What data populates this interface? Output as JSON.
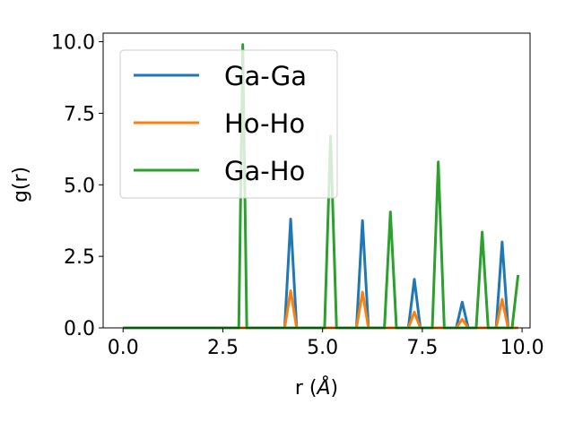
{
  "chart_data": {
    "type": "line",
    "title": "",
    "xlabel": "r (",
    "xlabel_symbol": "Å",
    "xlabel_close": ")",
    "ylabel": "g(r)",
    "xlim": [
      -0.5,
      10.2
    ],
    "ylim": [
      0.0,
      10.3
    ],
    "x_ticks": [
      0.0,
      2.5,
      5.0,
      7.5,
      10.0
    ],
    "x_tick_labels": [
      "0.0",
      "2.5",
      "5.0",
      "7.5",
      "10.0"
    ],
    "y_ticks": [
      0.0,
      2.5,
      5.0,
      7.5,
      10.0
    ],
    "y_tick_labels": [
      "0.0",
      "2.5",
      "5.0",
      "7.5",
      "10.0"
    ],
    "grid": false,
    "legend_position": "top-left",
    "series": [
      {
        "name": "Ga-Ga",
        "color": "#1f77b4",
        "x": [
          0.0,
          4.05,
          4.2,
          4.35,
          5.85,
          6.0,
          6.15,
          7.15,
          7.3,
          7.45,
          8.35,
          8.5,
          8.65,
          9.35,
          9.5,
          9.65,
          9.9
        ],
        "y": [
          0,
          0,
          3.8,
          0,
          0,
          3.75,
          0,
          0,
          1.7,
          0,
          0,
          0.9,
          0,
          0,
          3.0,
          0,
          0
        ]
      },
      {
        "name": "Ho-Ho",
        "color": "#ff7f0e",
        "x": [
          0.0,
          4.05,
          4.2,
          4.35,
          5.85,
          6.0,
          6.15,
          7.15,
          7.3,
          7.45,
          8.35,
          8.5,
          8.65,
          9.35,
          9.5,
          9.65,
          9.9
        ],
        "y": [
          0,
          0,
          1.3,
          0,
          0,
          1.25,
          0,
          0,
          0.55,
          0,
          0,
          0.3,
          0,
          0,
          1.0,
          0,
          0
        ]
      },
      {
        "name": "Ga-Ho",
        "color": "#2ca02c",
        "x": [
          0.0,
          2.9,
          3.0,
          3.1,
          5.05,
          5.2,
          5.35,
          6.55,
          6.7,
          6.85,
          7.75,
          7.9,
          8.05,
          8.85,
          9.0,
          9.15,
          9.75,
          9.9
        ],
        "y": [
          0,
          0,
          9.9,
          0,
          0,
          6.7,
          0,
          0,
          4.05,
          0,
          0,
          5.8,
          0,
          0,
          3.35,
          0,
          0,
          1.85
        ]
      }
    ]
  }
}
